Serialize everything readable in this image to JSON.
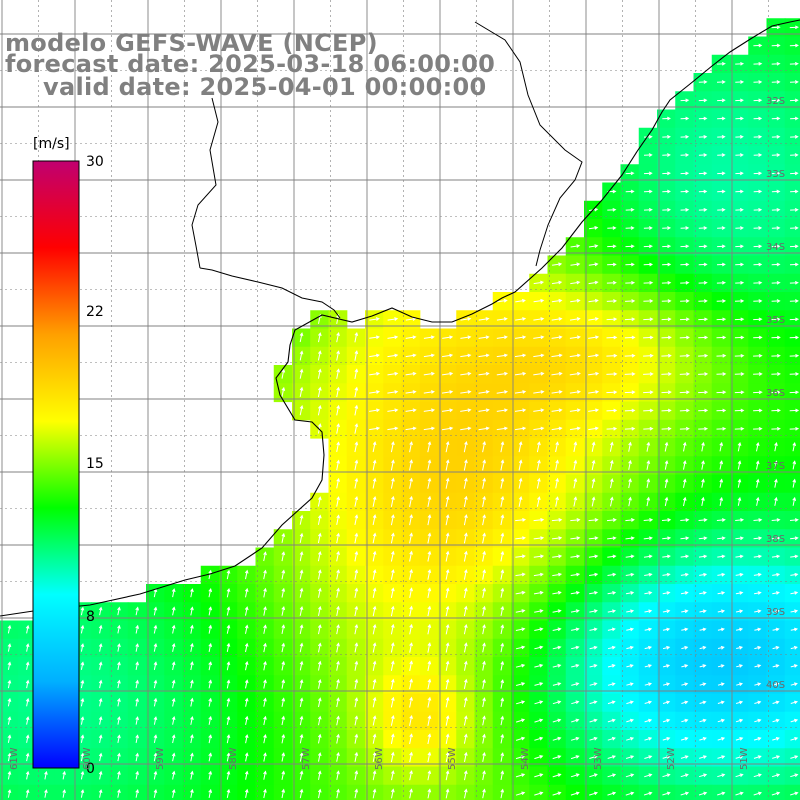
{
  "header": {
    "model": "modelo GEFS-WAVE (NCEP)",
    "forecast": "forecast date: 2025-03-18 06:00:00",
    "valid": "valid date: 2025-04-01 00:00:00"
  },
  "colorbar": {
    "unit": "[m/s]",
    "ticks": [
      "30",
      "22",
      "15",
      "8",
      "0"
    ],
    "colors": [
      "#0000ff",
      "#00b0ff",
      "#00ffff",
      "#00ff00",
      "#ffff00",
      "#ffa000",
      "#ff0000",
      "#c00070"
    ]
  },
  "map": {
    "lat_labels": [
      "32S",
      "33S",
      "34S",
      "35S",
      "36S",
      "37S",
      "38S",
      "39S",
      "40S"
    ],
    "lon_labels": [
      "61W",
      "60W",
      "59W",
      "58W",
      "57W",
      "56W",
      "55W",
      "54W",
      "53W",
      "52W",
      "51W"
    ],
    "land_color": "#ffffff",
    "grid_color": "#808080",
    "vector_color": "#ffffff"
  }
}
